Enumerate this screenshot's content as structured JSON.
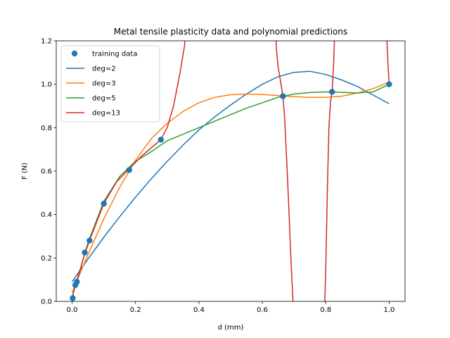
{
  "chart_data": {
    "type": "scatter",
    "title": "Metal tensile plasticity data and polynomial predictions",
    "xlabel": "d (mm)",
    "ylabel": "F (N)",
    "xlim": [
      -0.05,
      1.05
    ],
    "ylim": [
      0.0,
      1.2
    ],
    "xticks": [
      0.0,
      0.2,
      0.4,
      0.6,
      0.8,
      1.0
    ],
    "xtick_labels": [
      "0.0",
      "0.2",
      "0.4",
      "0.6",
      "0.8",
      "1.0"
    ],
    "yticks": [
      0.0,
      0.2,
      0.4,
      0.6,
      0.8,
      1.0,
      1.2
    ],
    "ytick_labels": [
      "0.0",
      "0.2",
      "0.4",
      "0.6",
      "0.8",
      "1.0",
      "1.2"
    ],
    "grid": false,
    "legend": {
      "placement": "upper-left",
      "entries": [
        "training data",
        "deg=2",
        "deg=3",
        "deg=5",
        "deg=13"
      ]
    },
    "scatter": {
      "name": "training data",
      "color": "#1f77b4",
      "x": [
        0.002,
        0.01,
        0.015,
        0.04,
        0.055,
        0.1,
        0.18,
        0.28,
        0.665,
        0.82,
        1.0
      ],
      "y": [
        0.015,
        0.075,
        0.09,
        0.225,
        0.28,
        0.45,
        0.605,
        0.745,
        0.945,
        0.965,
        1.0
      ]
    },
    "series": [
      {
        "name": "deg=2",
        "color": "#1f77b4",
        "x": [
          0.0,
          0.05,
          0.1,
          0.15,
          0.2,
          0.25,
          0.3,
          0.35,
          0.4,
          0.45,
          0.5,
          0.55,
          0.6,
          0.65,
          0.7,
          0.75,
          0.8,
          0.85,
          0.9,
          0.95,
          1.0
        ],
        "y": [
          0.09,
          0.195,
          0.295,
          0.39,
          0.48,
          0.565,
          0.645,
          0.72,
          0.79,
          0.85,
          0.905,
          0.955,
          1.0,
          1.035,
          1.055,
          1.06,
          1.045,
          1.02,
          0.99,
          0.95,
          0.91
        ]
      },
      {
        "name": "deg=3",
        "color": "#ff7f0e",
        "x": [
          0.0,
          0.05,
          0.1,
          0.15,
          0.2,
          0.25,
          0.3,
          0.35,
          0.4,
          0.45,
          0.5,
          0.55,
          0.6,
          0.65,
          0.7,
          0.75,
          0.8,
          0.85,
          0.9,
          0.95,
          1.0
        ],
        "y": [
          0.04,
          0.215,
          0.38,
          0.525,
          0.65,
          0.75,
          0.82,
          0.875,
          0.915,
          0.94,
          0.952,
          0.955,
          0.953,
          0.948,
          0.943,
          0.94,
          0.94,
          0.945,
          0.96,
          0.98,
          1.01
        ]
      },
      {
        "name": "deg=5",
        "color": "#2ca02c",
        "x": [
          0.0,
          0.05,
          0.1,
          0.15,
          0.2,
          0.25,
          0.3,
          0.35,
          0.4,
          0.45,
          0.5,
          0.55,
          0.6,
          0.65,
          0.7,
          0.75,
          0.8,
          0.85,
          0.9,
          0.95,
          1.0
        ],
        "y": [
          0.02,
          0.27,
          0.46,
          0.575,
          0.645,
          0.69,
          0.74,
          0.77,
          0.8,
          0.83,
          0.86,
          0.89,
          0.915,
          0.94,
          0.955,
          0.962,
          0.965,
          0.963,
          0.96,
          0.965,
          1.0
        ]
      },
      {
        "name": "deg=13",
        "color": "#d62728",
        "x": [
          0.0,
          0.01,
          0.02,
          0.04,
          0.06,
          0.1,
          0.14,
          0.18,
          0.22,
          0.26,
          0.28,
          0.3,
          0.32,
          0.34,
          0.355,
          0.36,
          0.64,
          0.645,
          0.65,
          0.66,
          0.665,
          0.67,
          0.68,
          0.69,
          0.7,
          0.795,
          0.8,
          0.805,
          0.81,
          0.815,
          0.82,
          0.825,
          0.83,
          0.99,
          0.993,
          0.996,
          0.998,
          1.0
        ],
        "y": [
          0.015,
          0.072,
          0.12,
          0.22,
          0.3,
          0.45,
          0.55,
          0.61,
          0.67,
          0.72,
          0.745,
          0.8,
          0.9,
          1.05,
          1.18,
          1.3,
          1.3,
          1.15,
          1.08,
          0.99,
          0.945,
          0.85,
          0.55,
          0.2,
          -0.1,
          -0.1,
          0.15,
          0.5,
          0.8,
          0.92,
          0.965,
          1.1,
          1.3,
          1.3,
          1.2,
          1.1,
          1.05,
          1.0
        ]
      }
    ]
  }
}
